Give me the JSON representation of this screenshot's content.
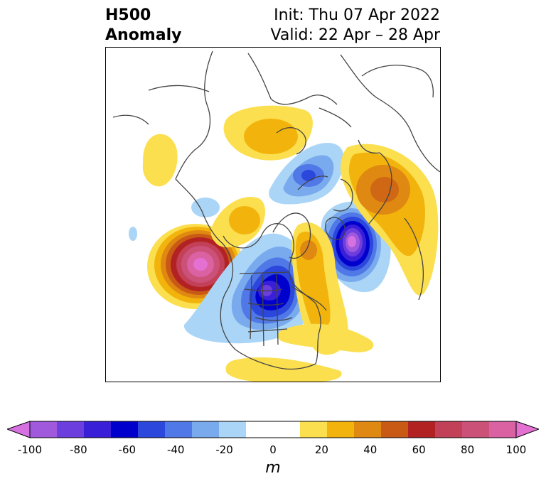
{
  "title": {
    "left_line1": "H500",
    "left_line2": "Anomaly",
    "right_line1": "Init: Thu 07 Apr 2022",
    "right_line2": "Valid: 22 Apr – 28 Apr"
  },
  "colorbar": {
    "unit": "m",
    "ticks": [
      "-100",
      "-80",
      "-60",
      "-40",
      "-20",
      "0",
      "20",
      "40",
      "60",
      "80",
      "100"
    ],
    "colors": [
      "#d671e2",
      "#a058dd",
      "#6b3edd",
      "#3a1fd8",
      "#0000cc",
      "#2b47dc",
      "#5078e6",
      "#79aaee",
      "#abd5f6",
      "#ffffff",
      "#ffffff",
      "#fbdf4e",
      "#f2b40c",
      "#df8812",
      "#c85a16",
      "#b22222",
      "#c24058",
      "#cc5179",
      "#da62a3",
      "#e470d2"
    ]
  },
  "map": {
    "projection": "north-polar-stereographic",
    "anomalies": [
      {
        "id": "ne-pacific-positive",
        "sign": "positive",
        "peak_m": 95
      },
      {
        "id": "north-america-negative",
        "sign": "negative",
        "peak_m": -70
      },
      {
        "id": "north-atlantic-negative",
        "sign": "negative",
        "peak_m": -95
      },
      {
        "id": "europe-positive",
        "sign": "positive",
        "peak_m": 40
      },
      {
        "id": "central-siberia-positive",
        "sign": "positive",
        "peak_m": 25
      },
      {
        "id": "barents-kara-negative",
        "sign": "negative",
        "peak_m": -40
      },
      {
        "id": "east-canada-positive",
        "sign": "positive",
        "peak_m": 40
      },
      {
        "id": "aleutian-positive",
        "sign": "positive",
        "peak_m": 25
      },
      {
        "id": "east-asia-positive",
        "sign": "positive",
        "peak_m": 15
      },
      {
        "id": "alaska-negative",
        "sign": "negative",
        "peak_m": -20
      },
      {
        "id": "nw-pacific-negative",
        "sign": "negative",
        "peak_m": -15
      },
      {
        "id": "atlantic-subtropic-positive",
        "sign": "positive",
        "peak_m": 15
      }
    ]
  }
}
